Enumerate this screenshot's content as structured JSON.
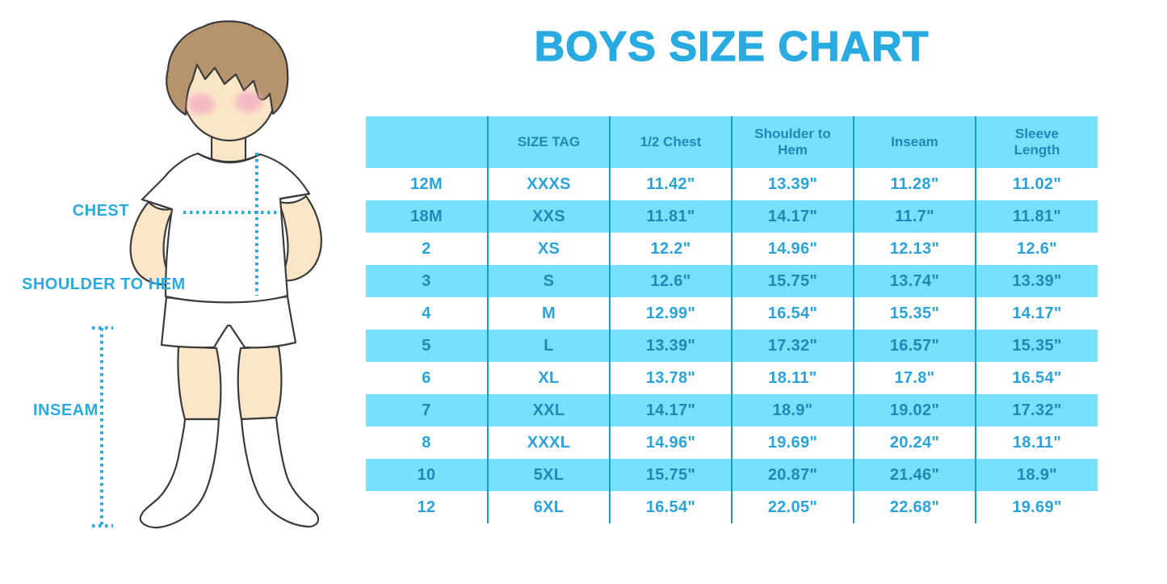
{
  "figure": {
    "labels": {
      "chest": "CHEST",
      "shoulder_to_hem": "SHOULDER TO HEM",
      "inseam": "INSEAM"
    }
  },
  "colors": {
    "accent_blue": "#29ABE2",
    "row_blue": "#76E1FC",
    "divider_blue": "#1E9BCC",
    "text_on_blue": "#1F89B5",
    "text_on_white": "#2AA2DB",
    "hair_brown": "#B5946B",
    "skin": "#FBE7C8",
    "cheek_pink": "#F2AFC1"
  },
  "chart_data": {
    "type": "table",
    "title": "BOYS SIZE CHART",
    "columns": [
      "",
      "SIZE TAG",
      "1/2 Chest",
      "Shoulder to Hem",
      "Inseam",
      "Sleeve Length"
    ],
    "rows": [
      [
        "12M",
        "XXXS",
        "11.42\"",
        "13.39\"",
        "11.28\"",
        "11.02\""
      ],
      [
        "18M",
        "XXS",
        "11.81\"",
        "14.17\"",
        "11.7\"",
        "11.81\""
      ],
      [
        "2",
        "XS",
        "12.2\"",
        "14.96\"",
        "12.13\"",
        "12.6\""
      ],
      [
        "3",
        "S",
        "12.6\"",
        "15.75\"",
        "13.74\"",
        "13.39\""
      ],
      [
        "4",
        "M",
        "12.99\"",
        "16.54\"",
        "15.35\"",
        "14.17\""
      ],
      [
        "5",
        "L",
        "13.39\"",
        "17.32\"",
        "16.57\"",
        "15.35\""
      ],
      [
        "6",
        "XL",
        "13.78\"",
        "18.11\"",
        "17.8\"",
        "16.54\""
      ],
      [
        "7",
        "XXL",
        "14.17\"",
        "18.9\"",
        "19.02\"",
        "17.32\""
      ],
      [
        "8",
        "XXXL",
        "14.96\"",
        "19.69\"",
        "20.24\"",
        "18.11\""
      ],
      [
        "10",
        "5XL",
        "15.75\"",
        "20.87\"",
        "21.46\"",
        "18.9\""
      ],
      [
        "12",
        "6XL",
        "16.54\"",
        "22.05\"",
        "22.68\"",
        "19.69\""
      ]
    ],
    "layout": {
      "striping": "header and alternating rows light blue, starting white after header",
      "grid": "vertical dividers only",
      "legend": "none"
    }
  }
}
